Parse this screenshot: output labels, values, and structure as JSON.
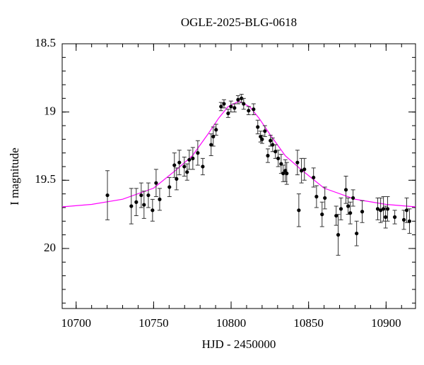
{
  "chart_data": {
    "type": "scatter",
    "title": "OGLE-2025-BLG-0618",
    "xlabel": "HJD - 2450000",
    "ylabel": "I magnitude",
    "xlim": [
      10691,
      10919
    ],
    "xticks": [
      10700,
      10750,
      10800,
      10850,
      10900
    ],
    "xminor": 10,
    "ylim": [
      20.44,
      18.5
    ],
    "yticks": [
      18.5,
      19,
      19.5,
      20
    ],
    "yminor": 0.1,
    "points": {
      "color": "#000000",
      "x": [
        10720.2,
        10735.6,
        10738.8,
        10742,
        10743.8,
        10746.6,
        10749.3,
        10751.6,
        10753.9,
        10760.2,
        10763.4,
        10764.8,
        10766.6,
        10769.8,
        10771.6,
        10773,
        10775.3,
        10778.5,
        10781.7,
        10787.1,
        10788.5,
        10790.3,
        10793.5,
        10795.4,
        10798.1,
        10799.9,
        10802.2,
        10804.5,
        10806.7,
        10808.1,
        10811.3,
        10814.5,
        10817.2,
        10819,
        10820,
        10821.8,
        10823.7,
        10825.4,
        10826.8,
        10828.6,
        10830.4,
        10832.3,
        10833.6,
        10835,
        10835.9,
        10842.8,
        10843.7,
        10845.4,
        10847.3,
        10853.2,
        10855.1,
        10858.7,
        10860.5,
        10867.8,
        10869.1,
        10870.9,
        10874.1,
        10875.5,
        10876.9,
        10878.7,
        10881,
        10884.6,
        10894.6,
        10896.5,
        10898.3,
        10899.7,
        10901,
        10905.6,
        10911.5,
        10913.3,
        10915.1
      ],
      "values": [
        19.61,
        19.69,
        19.66,
        19.61,
        19.68,
        19.61,
        19.72,
        19.52,
        19.64,
        19.55,
        19.39,
        19.49,
        19.37,
        19.4,
        19.44,
        19.35,
        19.34,
        19.3,
        19.4,
        19.24,
        19.18,
        19.13,
        18.96,
        18.94,
        19.01,
        18.96,
        18.97,
        18.91,
        18.9,
        18.94,
        18.99,
        18.98,
        19.11,
        19.18,
        19.2,
        19.14,
        19.32,
        19.21,
        19.24,
        19.29,
        19.34,
        19.38,
        19.45,
        19.43,
        19.45,
        19.37,
        19.72,
        19.43,
        19.42,
        19.48,
        19.62,
        19.75,
        19.63,
        19.76,
        19.9,
        19.71,
        19.57,
        19.69,
        19.74,
        19.63,
        19.89,
        19.73,
        19.71,
        19.72,
        19.71,
        19.77,
        19.71,
        19.77,
        19.79,
        19.72,
        19.8
      ],
      "errors": [
        0.18,
        0.13,
        0.1,
        0.09,
        0.1,
        0.09,
        0.08,
        0.1,
        0.08,
        0.07,
        0.09,
        0.08,
        0.09,
        0.07,
        0.06,
        0.07,
        0.08,
        0.09,
        0.06,
        0.08,
        0.07,
        0.04,
        0.03,
        0.03,
        0.03,
        0.04,
        0.03,
        0.03,
        0.03,
        0.04,
        0.03,
        0.04,
        0.05,
        0.04,
        0.03,
        0.04,
        0.05,
        0.04,
        0.05,
        0.05,
        0.06,
        0.07,
        0.06,
        0.08,
        0.08,
        0.09,
        0.12,
        0.09,
        0.08,
        0.07,
        0.08,
        0.09,
        0.08,
        0.07,
        0.15,
        0.08,
        0.1,
        0.06,
        0.08,
        0.06,
        0.09,
        0.08,
        0.08,
        0.09,
        0.09,
        0.08,
        0.09,
        0.05,
        0.07,
        0.09,
        0.09
      ]
    },
    "model": {
      "color": "#ff00ff",
      "x": [
        10691,
        10710,
        10730,
        10750,
        10765,
        10775,
        10785,
        10792,
        10798,
        10805,
        10812,
        10818,
        10825,
        10835,
        10845,
        10860,
        10880,
        10900,
        10919
      ],
      "values": [
        19.695,
        19.677,
        19.639,
        19.558,
        19.42,
        19.321,
        19.163,
        19.045,
        18.961,
        18.921,
        18.961,
        19.045,
        19.163,
        19.321,
        19.42,
        19.558,
        19.639,
        19.677,
        19.695
      ]
    }
  }
}
